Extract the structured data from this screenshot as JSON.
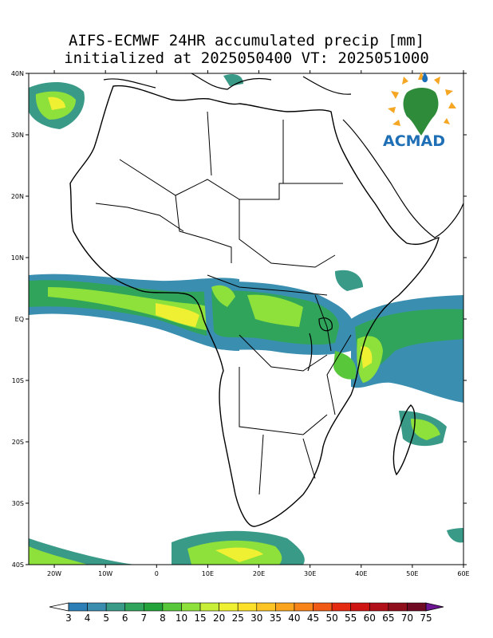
{
  "title": {
    "line1": "AIFS-ECMWF 24HR accumulated precip [mm]",
    "line2": "initialized at 2025050400 VT: 2025051000"
  },
  "logo": {
    "text": "ACMAD",
    "icon": "africa-sun-logo-icon"
  },
  "map": {
    "lon_range": [
      -25,
      60
    ],
    "lat_range": [
      -40,
      40
    ],
    "lat_labels": [
      "40N",
      "30N",
      "20N",
      "10N",
      "EQ",
      "10S",
      "20S",
      "30S",
      "40S"
    ],
    "lon_labels": [
      "20W",
      "10W",
      "0",
      "10E",
      "20E",
      "30E",
      "40E",
      "50E",
      "60E"
    ]
  },
  "colorbar": {
    "levels": [
      "3",
      "4",
      "5",
      "6",
      "7",
      "8",
      "10",
      "15",
      "20",
      "25",
      "30",
      "35",
      "40",
      "45",
      "50",
      "55",
      "60",
      "65",
      "70",
      "75"
    ],
    "colors": [
      "#2b7fb6",
      "#3b8db0",
      "#3a9a88",
      "#2fa45a",
      "#23a33a",
      "#58c83a",
      "#8ee03a",
      "#c8ee38",
      "#f0f032",
      "#fde02a",
      "#fcc424",
      "#fba51e",
      "#f88419",
      "#f05a14",
      "#e42a10",
      "#cf1512",
      "#b11018",
      "#8e0e1c",
      "#6e0a22",
      "#56082e",
      "#6c1590"
    ]
  }
}
